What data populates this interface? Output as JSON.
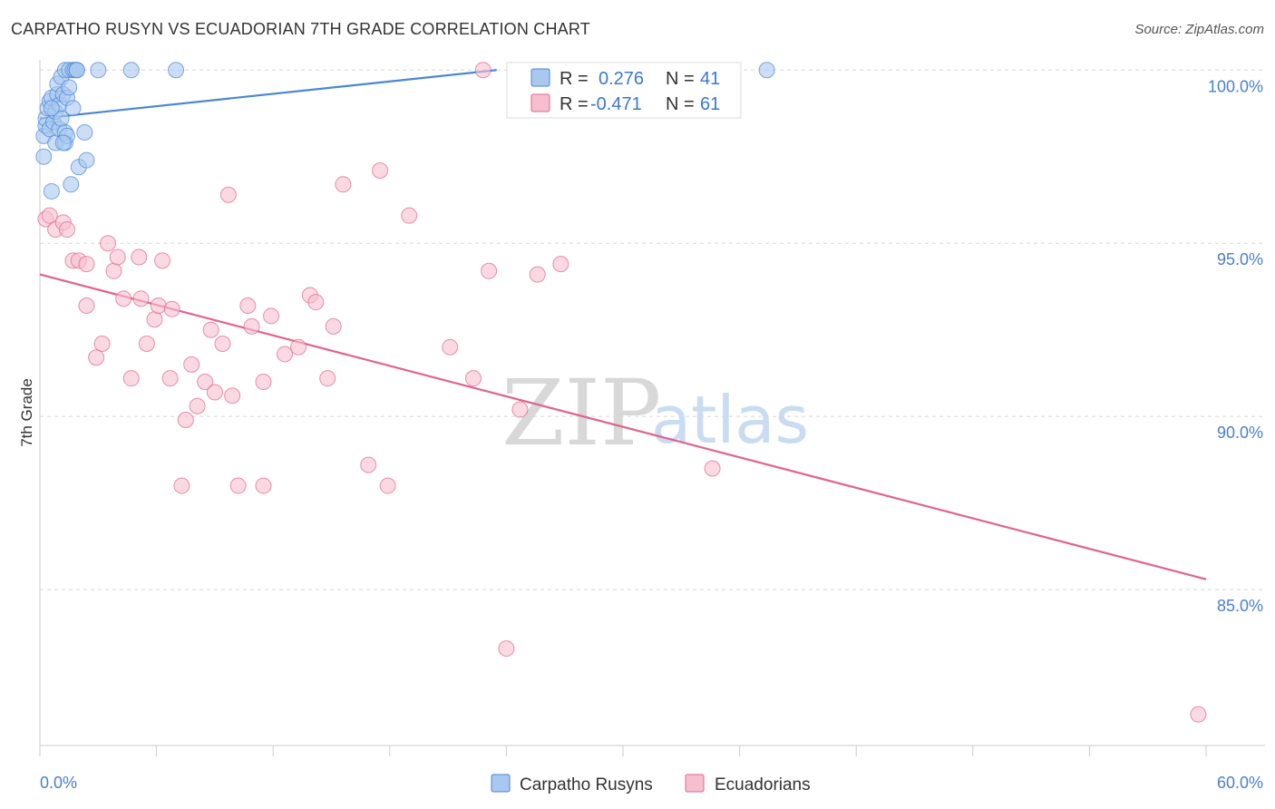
{
  "title": "CARPATHO RUSYN VS ECUADORIAN 7TH GRADE CORRELATION CHART",
  "source": "Source: ZipAtlas.com",
  "watermark": {
    "zip": "ZIP",
    "atlas": "atlas"
  },
  "colors": {
    "blue": "#4a86d4",
    "blue_fill": "#a9c8f0",
    "pink": "#e0648e",
    "pink_fill": "#f6bfd0",
    "grid": "#d8d8d8"
  },
  "legend": {
    "rows": [
      {
        "r_label": "R =",
        "r_value": "0.276",
        "n_label": "N =",
        "n_value": "41"
      },
      {
        "r_label": "R =",
        "r_value": "-0.471",
        "n_label": "N =",
        "n_value": "61"
      }
    ]
  },
  "bottom_legend": [
    "Carpatho Rusyns",
    "Ecuadorians"
  ],
  "chart_data": {
    "type": "scatter",
    "title": "CARPATHO RUSYN VS ECUADORIAN 7TH GRADE CORRELATION CHART",
    "xlabel": "",
    "ylabel": "7th Grade",
    "xlim": [
      0,
      60
    ],
    "ylim": [
      80.5,
      100.4
    ],
    "x_tick_labels": [
      "0.0%",
      "60.0%"
    ],
    "y_ticks": [
      100,
      95,
      90,
      85
    ],
    "y_tick_labels": [
      "100.0%",
      "95.0%",
      "90.0%",
      "85.0%"
    ],
    "grid": true,
    "legend_position": "top-center",
    "series": [
      {
        "name": "Carpatho Rusyns",
        "color": "#4a86d4",
        "trend": {
          "x": [
            0,
            23.5
          ],
          "y": [
            98.6,
            100.0
          ]
        },
        "points": [
          [
            0.2,
            97.5
          ],
          [
            0.2,
            98.1
          ],
          [
            0.3,
            98.4
          ],
          [
            0.3,
            98.6
          ],
          [
            0.4,
            98.9
          ],
          [
            0.5,
            99.1
          ],
          [
            0.5,
            98.3
          ],
          [
            0.6,
            99.2
          ],
          [
            0.6,
            96.5
          ],
          [
            0.7,
            98.5
          ],
          [
            0.8,
            97.9
          ],
          [
            0.8,
            98.8
          ],
          [
            0.9,
            99.3
          ],
          [
            0.9,
            99.6
          ],
          [
            1.0,
            98.3
          ],
          [
            1.0,
            99.0
          ],
          [
            1.1,
            98.6
          ],
          [
            1.1,
            99.8
          ],
          [
            1.2,
            99.3
          ],
          [
            1.3,
            97.9
          ],
          [
            1.3,
            98.2
          ],
          [
            1.3,
            100.0
          ],
          [
            1.4,
            99.2
          ],
          [
            1.5,
            100.0
          ],
          [
            1.5,
            99.5
          ],
          [
            1.6,
            96.7
          ],
          [
            1.7,
            98.9
          ],
          [
            1.7,
            100.0
          ],
          [
            1.8,
            100.0
          ],
          [
            1.9,
            100.0
          ],
          [
            1.9,
            100.0
          ],
          [
            1.4,
            98.1
          ],
          [
            2.0,
            97.2
          ],
          [
            2.3,
            98.2
          ],
          [
            2.4,
            97.4
          ],
          [
            3.0,
            100.0
          ],
          [
            4.7,
            100.0
          ],
          [
            7.0,
            100.0
          ],
          [
            37.4,
            100.0
          ],
          [
            0.6,
            98.9
          ],
          [
            1.2,
            97.9
          ]
        ]
      },
      {
        "name": "Ecuadorians",
        "color": "#e0648e",
        "trend": {
          "x": [
            0,
            60
          ],
          "y": [
            94.1,
            85.3
          ]
        },
        "points": [
          [
            0.3,
            95.7
          ],
          [
            0.5,
            95.8
          ],
          [
            0.8,
            95.4
          ],
          [
            1.2,
            95.6
          ],
          [
            1.4,
            95.4
          ],
          [
            1.7,
            94.5
          ],
          [
            2.0,
            94.5
          ],
          [
            2.4,
            94.4
          ],
          [
            2.4,
            93.2
          ],
          [
            3.2,
            92.1
          ],
          [
            2.9,
            91.7
          ],
          [
            3.5,
            95.0
          ],
          [
            3.8,
            94.2
          ],
          [
            4.0,
            94.6
          ],
          [
            4.3,
            93.4
          ],
          [
            4.7,
            91.1
          ],
          [
            5.1,
            94.6
          ],
          [
            5.2,
            93.4
          ],
          [
            5.5,
            92.1
          ],
          [
            5.9,
            92.8
          ],
          [
            6.1,
            93.2
          ],
          [
            6.3,
            94.5
          ],
          [
            6.8,
            93.1
          ],
          [
            6.7,
            91.1
          ],
          [
            7.5,
            89.9
          ],
          [
            7.8,
            91.5
          ],
          [
            8.1,
            90.3
          ],
          [
            8.5,
            91.0
          ],
          [
            8.8,
            92.5
          ],
          [
            9.0,
            90.7
          ],
          [
            9.4,
            92.1
          ],
          [
            9.9,
            90.6
          ],
          [
            10.7,
            93.2
          ],
          [
            10.9,
            92.6
          ],
          [
            11.5,
            91.0
          ],
          [
            11.9,
            92.9
          ],
          [
            12.6,
            91.8
          ],
          [
            13.3,
            92.0
          ],
          [
            13.9,
            93.5
          ],
          [
            14.2,
            93.3
          ],
          [
            14.8,
            91.1
          ],
          [
            15.1,
            92.6
          ],
          [
            15.6,
            96.7
          ],
          [
            17.5,
            97.1
          ],
          [
            16.9,
            88.6
          ],
          [
            17.9,
            88.0
          ],
          [
            19.0,
            95.8
          ],
          [
            21.1,
            92.0
          ],
          [
            22.3,
            91.1
          ],
          [
            22.8,
            100.0
          ],
          [
            23.1,
            94.2
          ],
          [
            24.0,
            83.3
          ],
          [
            24.7,
            90.2
          ],
          [
            25.6,
            94.1
          ],
          [
            26.8,
            94.4
          ],
          [
            34.6,
            88.5
          ],
          [
            59.6,
            81.4
          ],
          [
            9.7,
            96.4
          ],
          [
            7.3,
            88.0
          ],
          [
            10.2,
            88.0
          ],
          [
            11.5,
            88.0
          ]
        ]
      }
    ]
  }
}
